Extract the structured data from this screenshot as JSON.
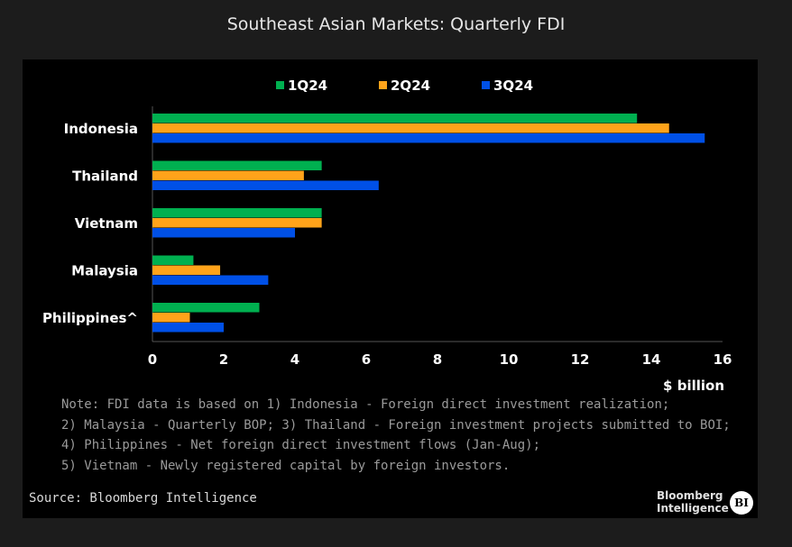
{
  "chart_data": {
    "type": "bar",
    "orientation": "horizontal",
    "title": "Southeast Asian Markets: Quarterly FDI",
    "xlabel": "$ billion",
    "categories": [
      "Indonesia",
      "Thailand",
      "Vietnam",
      "Malaysia",
      "Philippines^"
    ],
    "series": [
      {
        "name": "1Q24",
        "color": "#00b050",
        "values": [
          13.6,
          4.75,
          4.75,
          1.15,
          3.0
        ]
      },
      {
        "name": "2Q24",
        "color": "#ffa31a",
        "values": [
          14.5,
          4.25,
          4.75,
          1.9,
          1.05
        ]
      },
      {
        "name": "3Q24",
        "color": "#0050e6",
        "values": [
          15.5,
          6.35,
          4.0,
          3.25,
          2.0
        ]
      }
    ],
    "xlim": [
      0,
      16
    ],
    "xticks": [
      "0",
      "2",
      "4",
      "6",
      "8",
      "10",
      "12",
      "14",
      "16"
    ],
    "grid": false,
    "legend": "top"
  },
  "notes": [
    "Note: FDI data is based on 1) Indonesia - Foreign direct investment realization;",
    "2) Malaysia - Quarterly BOP; 3) Thailand - Foreign investment projects submitted to BOI;",
    "4) Philippines - Net foreign direct investment flows (Jan-Aug);",
    "5) Vietnam - Newly registered capital by foreign investors."
  ],
  "source": "Source: Bloomberg Intelligence",
  "logo": {
    "line1": "Bloomberg",
    "line2": "Intelligence",
    "badge": "BI"
  }
}
